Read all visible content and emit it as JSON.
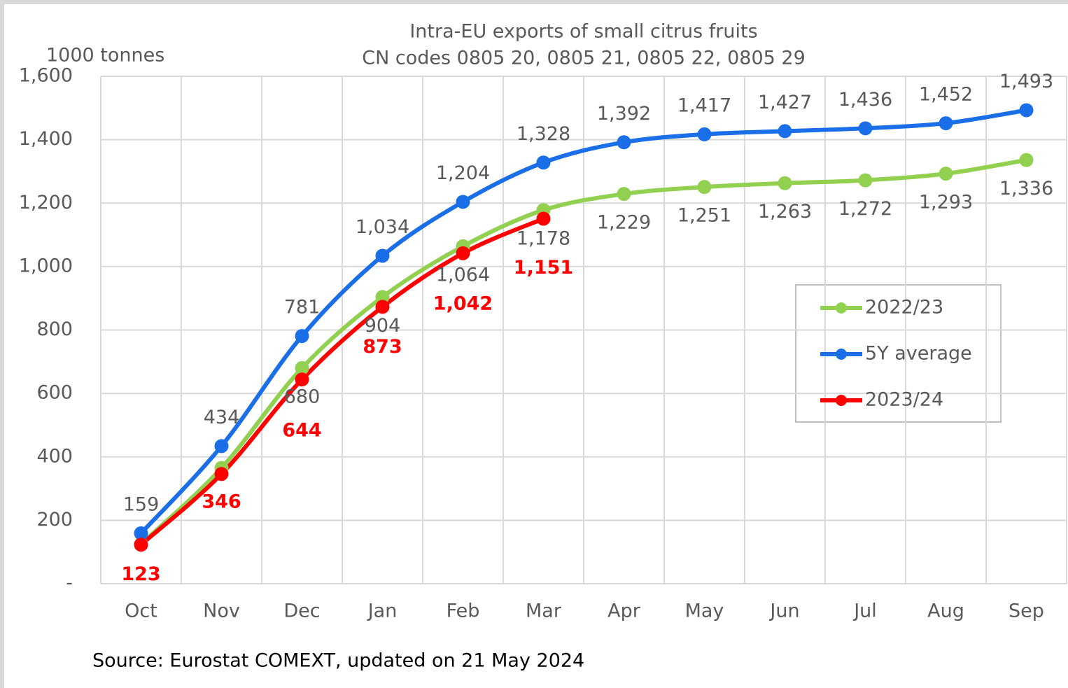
{
  "chart_data": {
    "type": "line",
    "title": [
      "Intra-EU exports of small citrus fruits",
      "CN codes 0805 20, 0805 21, 0805 22, 0805 29"
    ],
    "y_label": "1000 tonnes",
    "source": "Source: Eurostat COMEXT, updated on 21 May 2024",
    "categories": [
      "Oct",
      "Nov",
      "Dec",
      "Jan",
      "Feb",
      "Mar",
      "Apr",
      "May",
      "Jun",
      "Jul",
      "Aug",
      "Sep"
    ],
    "series": [
      {
        "name": "2022/23",
        "color": "#92d050",
        "values": [
          125,
          365,
          680,
          904,
          1064,
          1178,
          1229,
          1251,
          1263,
          1272,
          1293,
          1336
        ],
        "value_labels": [
          null,
          null,
          "680",
          "904",
          "1,064",
          "1,178",
          "1,229",
          "1,251",
          "1,263",
          "1,272",
          "1,293",
          "1,336"
        ]
      },
      {
        "name": "5Y average",
        "color": "#1a6fe8",
        "values": [
          159,
          434,
          781,
          1034,
          1204,
          1328,
          1392,
          1417,
          1427,
          1436,
          1452,
          1493
        ],
        "value_labels": [
          "159",
          "434",
          "781",
          "1,034",
          "1,204",
          "1,328",
          "1,392",
          "1,417",
          "1,427",
          "1,436",
          "1,452",
          "1,493"
        ]
      },
      {
        "name": "2023/24",
        "color": "#ff0000",
        "values": [
          123,
          346,
          644,
          873,
          1042,
          1151,
          null,
          null,
          null,
          null,
          null,
          null
        ],
        "value_labels": [
          "123",
          "346",
          "644",
          "873",
          "1,042",
          "1,151",
          null,
          null,
          null,
          null,
          null,
          null
        ]
      }
    ],
    "ylim": [
      0,
      1600
    ],
    "yticks": [
      {
        "value": 0,
        "label": "-"
      },
      200,
      400,
      600,
      800,
      {
        "value": 1000,
        "label": "1,000"
      },
      {
        "value": 1200,
        "label": "1,200"
      },
      {
        "value": 1400,
        "label": "1,400"
      },
      {
        "value": 1600,
        "label": "1,600"
      }
    ],
    "grid": true,
    "legend": "right"
  }
}
